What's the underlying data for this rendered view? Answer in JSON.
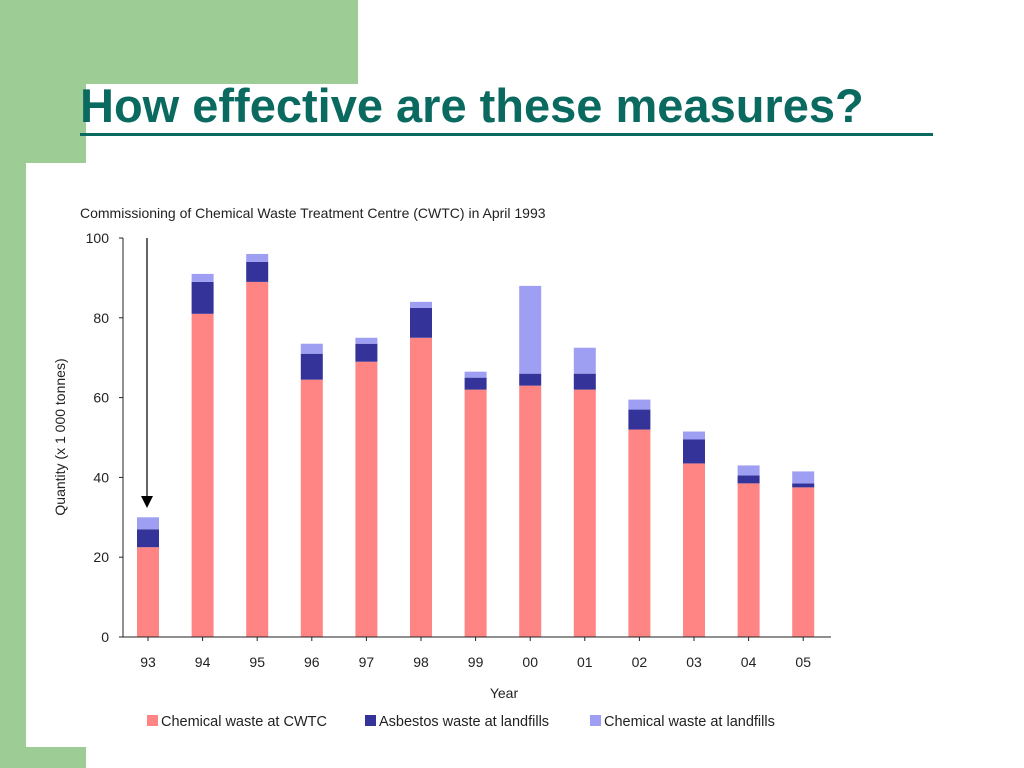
{
  "slide": {
    "title": "How effective are these measures?"
  },
  "colors": {
    "background": "#ffffff",
    "deco_green": "#9dcd94",
    "title": "#0a6a60",
    "axis": "#222222"
  },
  "chart_data": {
    "type": "bar",
    "stacked": true,
    "title": "Commissioning of Chemical Waste Treatment Centre (CWTC) in April 1993",
    "xlabel": "Year",
    "ylabel": "Quantity (x 1 000 tonnes)",
    "ylim": [
      0,
      100
    ],
    "yticks": [
      0,
      20,
      40,
      60,
      80,
      100
    ],
    "grid": false,
    "legend_position": "bottom",
    "categories": [
      "93",
      "94",
      "95",
      "96",
      "97",
      "98",
      "99",
      "00",
      "01",
      "02",
      "03",
      "04",
      "05"
    ],
    "series": [
      {
        "name": "Chemical waste at CWTC",
        "color": "#ff8585",
        "values": [
          22.5,
          81,
          89,
          64.5,
          69,
          75,
          62,
          63,
          62,
          52,
          43.5,
          38.5,
          37.5
        ]
      },
      {
        "name": "Asbestos waste at landfills",
        "color": "#33339a",
        "values": [
          4.5,
          8,
          5,
          6.5,
          4.5,
          7.5,
          3,
          3,
          4,
          5,
          6,
          2,
          1
        ]
      },
      {
        "name": "Chemical waste at landfills",
        "color": "#9e9ef2",
        "values": [
          3,
          2,
          2,
          2.5,
          1.5,
          1.5,
          1.5,
          22,
          6.5,
          2.5,
          2,
          2.5,
          3
        ]
      }
    ],
    "annotation": {
      "type": "arrow",
      "target_category": "93",
      "from_value": 100
    }
  }
}
